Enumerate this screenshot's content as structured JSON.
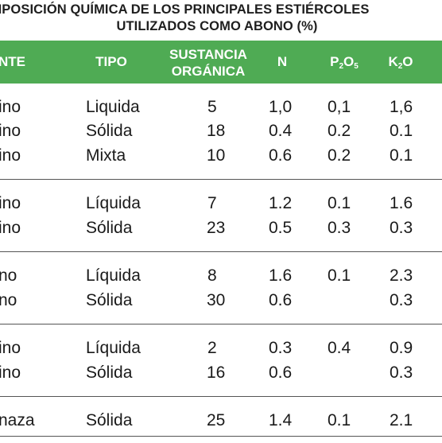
{
  "title": {
    "line1": "OMPOSICIÓN QUÍMICA DE LOS PRINCIPALES ESTIÉRCOLES",
    "line2": "UTILIZADOS COMO ABONO (%)"
  },
  "header": {
    "col_source": "NTE",
    "col_type": "TIPO",
    "col_organic_1": "SUSTANCIA",
    "col_organic_2": "ORGÁNICA",
    "col_n": "N",
    "col_p_base": "P",
    "col_p_sub1": "2",
    "col_p_o": "O",
    "col_p_sub2": "5",
    "col_k_base": "K",
    "col_k_sub": "2",
    "col_k_o": "O"
  },
  "colors": {
    "header_bg": "#4fab54",
    "header_text": "#ffffff",
    "rule": "#555555"
  },
  "rows": [
    {
      "source": "ino",
      "type": "Liquida",
      "organic": "5",
      "n": "1,0",
      "p2o5": "0,1",
      "k2o": "1,6"
    },
    {
      "source": "ino",
      "type": "Sólida",
      "organic": "18",
      "n": "0.4",
      "p2o5": "0.2",
      "k2o": "0.1"
    },
    {
      "source": "ino",
      "type": "Mixta",
      "organic": "10",
      "n": "0.6",
      "p2o5": "0.2",
      "k2o": "0.1"
    },
    {
      "source": "ino",
      "type": "Líquida",
      "organic": "7",
      "n": "1.2",
      "p2o5": "0.1",
      "k2o": "1.6"
    },
    {
      "source": "ino",
      "type": "Sólida",
      "organic": "23",
      "n": "0.5",
      "p2o5": "0.3",
      "k2o": "0.3"
    },
    {
      "source": "no",
      "type": "Líquida",
      "organic": "8",
      "n": "1.6",
      "p2o5": "0.1",
      "k2o": "2.3"
    },
    {
      "source": "no",
      "type": "Sólida",
      "organic": "30",
      "n": "0.6",
      "p2o5": "",
      "k2o": "0.3"
    },
    {
      "source": "ino",
      "type": "Líquida",
      "organic": "2",
      "n": "0.3",
      "p2o5": "0.4",
      "k2o": "0.9"
    },
    {
      "source": "ino",
      "type": "Sólida",
      "organic": "16",
      "n": "0.6",
      "p2o5": "",
      "k2o": "0.3"
    },
    {
      "source": "naza",
      "type": "Sólida",
      "organic": "25",
      "n": "1.4",
      "p2o5": "0.1",
      "k2o": "2.1"
    }
  ]
}
